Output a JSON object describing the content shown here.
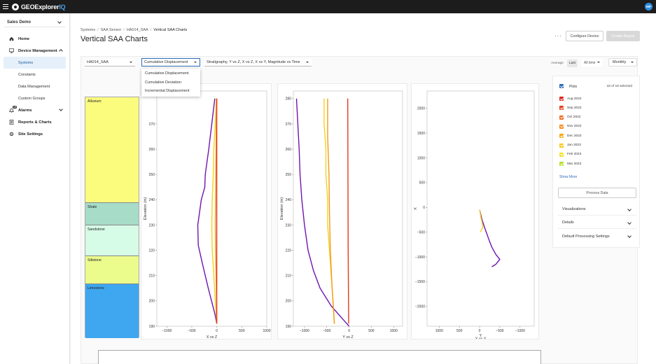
{
  "app": {
    "brand": "GEOExplorer",
    "brand_suffix": "IQ",
    "user_initials": "MP"
  },
  "sidebar": {
    "org": "Sales Demo",
    "items": [
      {
        "label": "Home"
      },
      {
        "label": "Device Management"
      },
      {
        "label": "Systems"
      },
      {
        "label": "Constants"
      },
      {
        "label": "Data Management"
      },
      {
        "label": "Custom Groups"
      },
      {
        "label": "Alarms",
        "badge": "15"
      },
      {
        "label": "Reports & Charts"
      },
      {
        "label": "Site Settings"
      }
    ]
  },
  "breadcrumb": [
    "Systems",
    "SAA Sensor",
    "HA014_SAA",
    "Vertical SAA Charts"
  ],
  "page_title": "Vertical SAA Charts",
  "header_actions": {
    "more": "···",
    "configure": "Configure Device",
    "report": "Create Report"
  },
  "controls": {
    "sensor": "HA014_SAA",
    "mode": "Cumulative Displacement",
    "mode_options": [
      "Cumulative Displacement",
      "Cumulative Deviation",
      "Incremental Displacement"
    ],
    "plots": "Stratigraphy, Y vs Z, X vs Z, X vs Y, Magnitude vs Time",
    "average_label": "Average",
    "last_label": "Last",
    "time_range": "All time",
    "interval": "Monthly"
  },
  "stratigraphy": [
    {
      "name": "Alluvium",
      "color": "#fbfc7e"
    },
    {
      "name": "Shale",
      "color": "#a6dcc8"
    },
    {
      "name": "Sandstone",
      "color": "#d6fbe6"
    },
    {
      "name": "Siltstone",
      "color": "#ebfc8c"
    },
    {
      "name": "Limestone",
      "color": "#3ea7ef"
    }
  ],
  "plots_panel": {
    "header": "Plots",
    "selected": "18 of 18 selected",
    "items": [
      {
        "label": "Aug 2022",
        "color": "#e0261f"
      },
      {
        "label": "Sep 2022",
        "color": "#e8421f"
      },
      {
        "label": "Oct 2022",
        "color": "#f06a1f"
      },
      {
        "label": "Nov 2022",
        "color": "#f48a1c"
      },
      {
        "label": "Dec 2022",
        "color": "#f7a81a"
      },
      {
        "label": "Jan 2023",
        "color": "#f9c81b"
      },
      {
        "label": "Feb 2023",
        "color": "#f4e021"
      },
      {
        "label": "Mar 2023",
        "color": "#b8e02a"
      }
    ],
    "show_more": "Show More",
    "process": "Process Data",
    "sections": [
      "Visualizations",
      "Details",
      "Default Processing Settings"
    ]
  },
  "chart_data": [
    {
      "type": "line",
      "title": "X vs Z",
      "ylabel": "Elevation (m)",
      "xlim": [
        -1200,
        1000
      ],
      "ylim": [
        190,
        283
      ],
      "x_ticks": [
        "−1000",
        "−500",
        "0",
        "500",
        "1000"
      ],
      "y_ticks": [
        "190",
        "200",
        "210",
        "220",
        "230",
        "240",
        "250",
        "260",
        "270"
      ],
      "series": [
        {
          "color": "#7014b0",
          "points": [
            [
              -40,
              280
            ],
            [
              -100,
              270
            ],
            [
              -160,
              260
            ],
            [
              -230,
              250
            ],
            [
              -240,
              245
            ],
            [
              -310,
              240
            ],
            [
              -380,
              230
            ],
            [
              -370,
              222
            ],
            [
              -290,
              215
            ],
            [
              -170,
              205
            ],
            [
              -40,
              195
            ],
            [
              0,
              191
            ]
          ]
        },
        {
          "color": "#f4d21e",
          "points": [
            [
              -10,
              280
            ],
            [
              -30,
              270
            ],
            [
              -60,
              260
            ],
            [
              -70,
              250
            ],
            [
              -90,
              240
            ],
            [
              -100,
              230
            ],
            [
              -90,
              220
            ],
            [
              -60,
              210
            ],
            [
              -30,
              200
            ],
            [
              0,
              191
            ]
          ]
        },
        {
          "color": "#f49a1c",
          "points": [
            [
              0,
              280
            ],
            [
              -10,
              270
            ],
            [
              -15,
              260
            ],
            [
              -20,
              250
            ],
            [
              -25,
              240
            ],
            [
              -30,
              230
            ],
            [
              -25,
              220
            ],
            [
              -15,
              210
            ],
            [
              -5,
              200
            ],
            [
              0,
              191
            ]
          ]
        },
        {
          "color": "#e33a1f",
          "points": [
            [
              0,
              280
            ],
            [
              0,
              250
            ],
            [
              0,
              220
            ],
            [
              0,
              191
            ]
          ]
        }
      ]
    },
    {
      "type": "line",
      "title": "Y vs Z",
      "ylabel": "Elevation (m)",
      "xlim": [
        -1250,
        1200
      ],
      "ylim": [
        190,
        283
      ],
      "x_ticks": [
        "−1000",
        "−500",
        "0",
        "500",
        "1000"
      ],
      "y_ticks": [
        "190",
        "200",
        "210",
        "220",
        "230",
        "240",
        "250",
        "260",
        "270",
        "280"
      ],
      "series": [
        {
          "color": "#7014b0",
          "points": [
            [
              -1180,
              280
            ],
            [
              -1150,
              270
            ],
            [
              -1120,
              260
            ],
            [
              -1100,
              250
            ],
            [
              -1060,
              240
            ],
            [
              -1000,
              230
            ],
            [
              -920,
              220
            ],
            [
              -800,
              212
            ],
            [
              -650,
              205
            ],
            [
              -400,
              198
            ],
            [
              -100,
              192
            ],
            [
              0,
              190
            ]
          ]
        },
        {
          "color": "#f4d21e",
          "points": [
            [
              -560,
              280
            ],
            [
              -560,
              270
            ],
            [
              -520,
              260
            ],
            [
              -520,
              250
            ],
            [
              -480,
              240
            ],
            [
              -480,
              230
            ],
            [
              -440,
              220
            ],
            [
              -400,
              210
            ],
            [
              -360,
              200
            ],
            [
              -330,
              191
            ]
          ]
        },
        {
          "color": "#f49a1c",
          "points": [
            [
              -480,
              280
            ],
            [
              -480,
              265
            ],
            [
              -450,
              250
            ],
            [
              -440,
              235
            ],
            [
              -420,
              220
            ],
            [
              -380,
              205
            ],
            [
              -330,
              191
            ]
          ]
        },
        {
          "color": "#e33a1f",
          "points": [
            [
              -30,
              280
            ],
            [
              -25,
              250
            ],
            [
              -20,
              220
            ],
            [
              -10,
              191
            ]
          ]
        }
      ]
    },
    {
      "type": "scatter",
      "title": "X vs Y",
      "xlabel": "Y",
      "ylabel": "X",
      "xlim": [
        1300,
        -1350
      ],
      "ylim": [
        -2400,
        2350
      ],
      "x_ticks": [
        "1000",
        "500",
        "0",
        "−500",
        "−1000"
      ],
      "y_ticks": [
        "2000",
        "1500",
        "1000",
        "500",
        "0",
        "−500",
        "−1000",
        "−1500",
        "−2000"
      ],
      "series": [
        {
          "color": "#7014b0",
          "points": [
            [
              0,
              -50
            ],
            [
              -60,
              -250
            ],
            [
              -120,
              -400
            ],
            [
              -230,
              -650
            ],
            [
              -300,
              -800
            ],
            [
              -400,
              -950
            ],
            [
              -500,
              -1050
            ],
            [
              -400,
              -1150
            ],
            [
              -300,
              -1200
            ]
          ]
        },
        {
          "color": "#f4d21e",
          "points": [
            [
              0,
              -50
            ],
            [
              -30,
              -200
            ],
            [
              -60,
              -300
            ],
            [
              -80,
              -400
            ],
            [
              -50,
              -450
            ],
            [
              -20,
              -500
            ]
          ]
        }
      ]
    }
  ]
}
